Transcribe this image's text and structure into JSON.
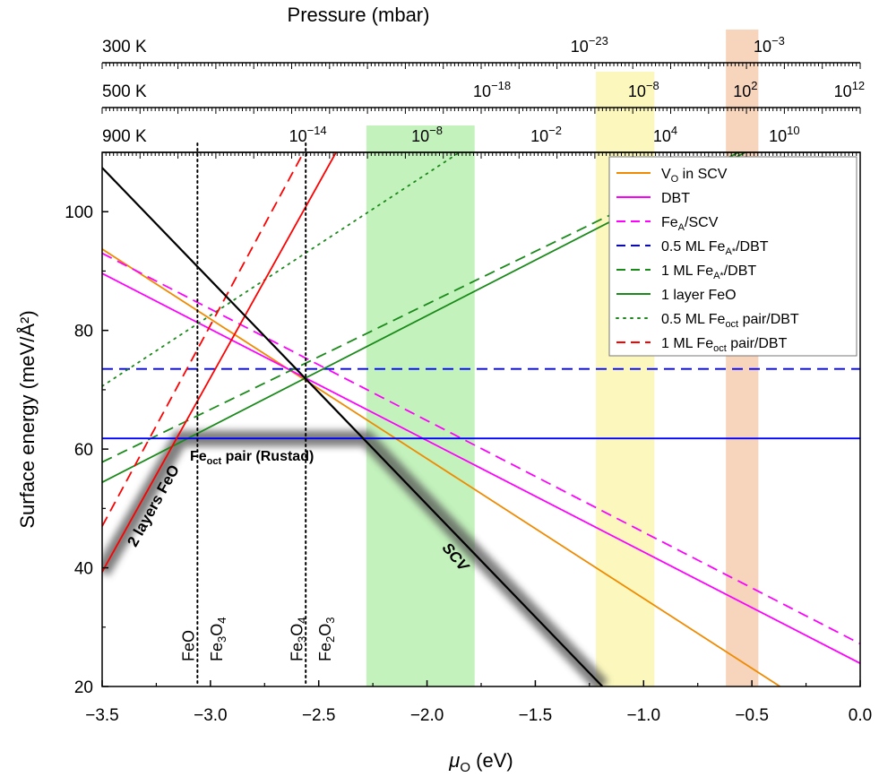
{
  "chart_data": {
    "type": "line",
    "pressure_title": "Pressure (mbar)",
    "xlabel_main": "μ",
    "xlabel_sub": "O",
    "xlabel_unit": " (eV)",
    "ylabel": "Surface energy (meV/Å²)",
    "xlim": [
      -3.5,
      0.0
    ],
    "ylim": [
      20,
      110
    ],
    "x_ticks": [
      {
        "v": -3.5,
        "label": "−3.5"
      },
      {
        "v": -3.0,
        "label": "−3.0"
      },
      {
        "v": -2.5,
        "label": "−2.5"
      },
      {
        "v": -2.0,
        "label": "−2.0"
      },
      {
        "v": -1.5,
        "label": "−1.5"
      },
      {
        "v": -1.0,
        "label": "−1.0"
      },
      {
        "v": -0.5,
        "label": "−0.5"
      },
      {
        "v": 0.0,
        "label": "0.0"
      }
    ],
    "y_ticks": [
      {
        "v": 20,
        "label": "20"
      },
      {
        "v": 40,
        "label": "40"
      },
      {
        "v": 60,
        "label": "60"
      },
      {
        "v": 80,
        "label": "80"
      },
      {
        "v": 100,
        "label": "100"
      }
    ],
    "pressure_axes": [
      {
        "temperature": "300 K",
        "labels": [
          {
            "mu": -1.25,
            "base": "10",
            "exp": "−23"
          },
          {
            "mu": -0.42,
            "base": "10",
            "exp": "−3"
          }
        ]
      },
      {
        "temperature": "500 K",
        "labels": [
          {
            "mu": -1.7,
            "base": "10",
            "exp": "−18"
          },
          {
            "mu": -1.0,
            "base": "10",
            "exp": "−8"
          },
          {
            "mu": -0.53,
            "base": "10",
            "exp": "2"
          },
          {
            "mu": -0.05,
            "base": "10",
            "exp": "12"
          }
        ]
      },
      {
        "temperature": "900 K",
        "labels": [
          {
            "mu": -2.55,
            "base": "10",
            "exp": "−14"
          },
          {
            "mu": -2.0,
            "base": "10",
            "exp": "−8"
          },
          {
            "mu": -1.45,
            "base": "10",
            "exp": "−2"
          },
          {
            "mu": -0.9,
            "base": "10",
            "exp": "4"
          },
          {
            "mu": -0.35,
            "base": "10",
            "exp": "10"
          }
        ]
      }
    ],
    "shaded_bands": [
      {
        "x": [
          -2.28,
          -1.78
        ],
        "color": "#b9f0b0"
      },
      {
        "x": [
          -1.22,
          -0.95
        ],
        "color": "#fbf7b2"
      },
      {
        "x": [
          -0.62,
          -0.47
        ],
        "color": "#f6cdb0"
      }
    ],
    "vertical_dotted": [
      -3.06,
      -2.56
    ],
    "vertical_labels": [
      {
        "x": -3.1,
        "text": "FeO"
      },
      {
        "x": -2.97,
        "text": "Fe",
        "sub1": "3",
        "text2": "O",
        "sub2": "4"
      },
      {
        "x": -2.6,
        "text": "Fe",
        "sub1": "3",
        "text2": "O",
        "sub2": "4"
      },
      {
        "x": -2.47,
        "text": "Fe",
        "sub1": "2",
        "text2": "O",
        "sub2": "3"
      }
    ],
    "series": [
      {
        "name": "V",
        "name_sub": "O",
        "name_rest": " in SCV",
        "color": "#f08a00",
        "dash": "solid",
        "x": [
          -3.5,
          -0.37
        ],
        "y": [
          93.7,
          20
        ]
      },
      {
        "name": "DBT",
        "color": "#ff00ff",
        "dash": "solid",
        "x": [
          -3.5,
          0.0
        ],
        "y": [
          89.6,
          23.9
        ]
      },
      {
        "name": "Fe",
        "name_sub": "A",
        "name_rest": "/SCV",
        "color": "#ff00ff",
        "dash": "dashed",
        "x": [
          -3.5,
          0.0
        ],
        "y": [
          93.0,
          27.2
        ]
      },
      {
        "name": "0.5 ML Fe",
        "name_sub": "A*",
        "name_rest": "/DBT",
        "color": "#0000ff",
        "dash": "dashed",
        "x": [
          -3.5,
          0.0
        ],
        "y": [
          73.5,
          73.5
        ]
      },
      {
        "name": "1 ML Fe",
        "name_sub": "A*",
        "name_rest": "/DBT",
        "color": "#1a8a1a",
        "dash": "dashed",
        "x": [
          -3.5,
          -0.56
        ],
        "y": [
          57.8,
          110
        ]
      },
      {
        "name": "1 layer FeO",
        "color": "#1a8a1a",
        "dash": "solid",
        "x": [
          -3.5,
          -0.53
        ],
        "y": [
          54.4,
          110
        ]
      },
      {
        "name": "0.5 ML Fe",
        "name_sub": "oct",
        "name_rest": " pair/DBT",
        "color": "#1a8a1a",
        "dash": "dotted",
        "x": [
          -3.5,
          -1.85
        ],
        "y": [
          70.6,
          110
        ]
      },
      {
        "name": "1 ML Fe",
        "name_sub": "oct",
        "name_rest": " pair/DBT",
        "color": "#ff0000",
        "dash": "dashed",
        "x": [
          -3.5,
          -2.57
        ],
        "y": [
          47.0,
          110
        ]
      },
      {
        "name": "",
        "color": "#0000ff",
        "dash": "solid",
        "x": [
          -3.5,
          0.0
        ],
        "y": [
          61.8,
          61.8
        ]
      },
      {
        "name": "",
        "color": "#ff0000",
        "dash": "solid",
        "x": [
          -3.5,
          -2.42
        ],
        "y": [
          39.3,
          110
        ]
      },
      {
        "name": "",
        "color": "#000000",
        "dash": "solid",
        "x": [
          -3.5,
          -1.19
        ],
        "y": [
          107.4,
          20
        ]
      }
    ],
    "stable_path": {
      "x": [
        -3.5,
        -3.14,
        -2.28,
        -1.19
      ],
      "y": [
        39.3,
        61.8,
        61.8,
        20
      ]
    },
    "annotations": [
      {
        "id": "feoct",
        "text": "Fe",
        "sub": "oct",
        "rest": "  pair (Rustad)"
      },
      {
        "id": "layers",
        "text": "2 layers FeO"
      },
      {
        "id": "scv",
        "text": "SCV"
      }
    ],
    "legend_position": "top-right",
    "grid": false
  }
}
